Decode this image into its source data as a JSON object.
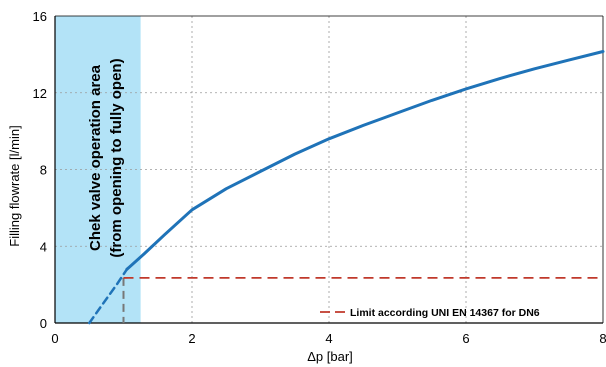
{
  "chart_data": {
    "type": "line",
    "xlabel": "Δp [bar]",
    "ylabel": "Filling flowrate  [l/min]",
    "xlim": [
      0,
      8
    ],
    "ylim": [
      0,
      16
    ],
    "x_ticks": [
      0,
      2,
      4,
      6,
      8
    ],
    "y_ticks": [
      0,
      4,
      8,
      12,
      16
    ],
    "grid": {
      "vertical": "dotted",
      "horizontal": "dotted"
    },
    "shaded_region": {
      "x_range": [
        0,
        1.25
      ],
      "color": "#b3e3f7",
      "label_line1": "Chek valve operation area",
      "label_line2": "(from opening to fully open)"
    },
    "series": [
      {
        "style": "dashed",
        "color": "#1f73b8",
        "x": [
          0.5,
          0.7,
          0.9,
          1.05
        ],
        "y": [
          0.0,
          1.0,
          2.0,
          2.8
        ]
      },
      {
        "style": "solid",
        "color": "#1f73b8",
        "x": [
          1.05,
          1.3,
          1.6,
          2.0,
          2.5,
          3.0,
          3.5,
          4.0,
          4.5,
          5.0,
          5.5,
          6.0,
          6.5,
          7.0,
          7.5,
          8.0
        ],
        "y": [
          2.8,
          3.6,
          4.6,
          5.9,
          7.0,
          7.9,
          8.8,
          9.6,
          10.3,
          10.95,
          11.6,
          12.2,
          12.75,
          13.25,
          13.7,
          14.15
        ]
      }
    ],
    "limit_line": {
      "y": 2.35,
      "x_start": 1.0,
      "x_end": 8.0,
      "color": "#c0392b",
      "style": "dashed",
      "label": "Limit according UNI EN 14367 for DN6"
    },
    "guide_line": {
      "x": 1.0,
      "y_top": 2.35,
      "color": "#777777",
      "style": "dashed"
    },
    "legend": {
      "placement": "bottom-right"
    }
  }
}
